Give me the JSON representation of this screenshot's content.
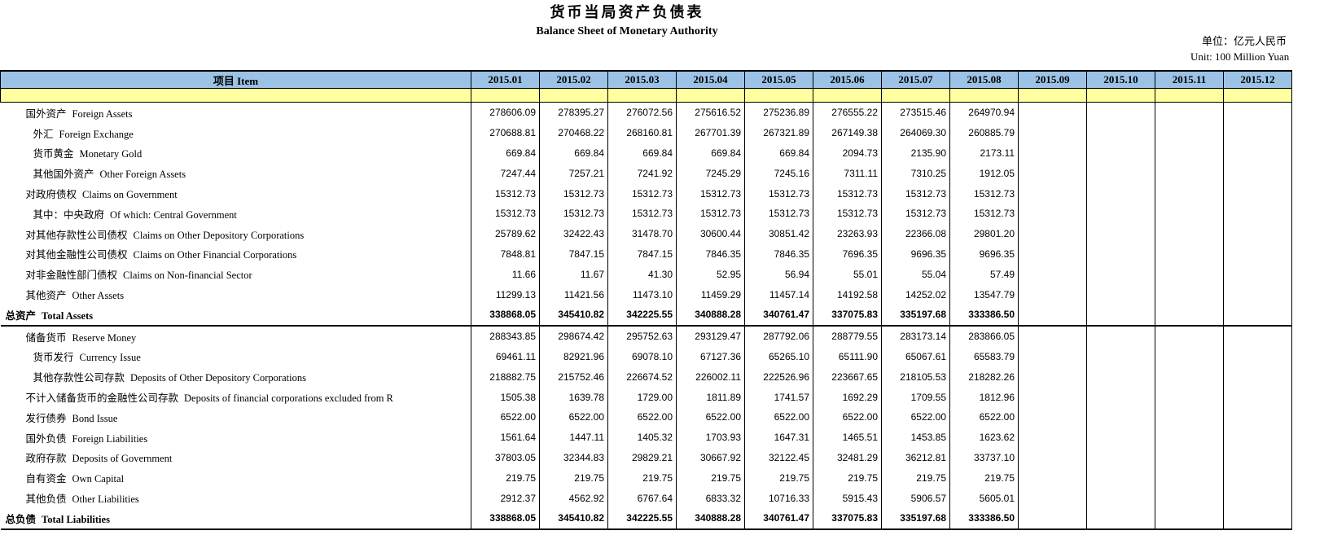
{
  "page": {
    "title_cn": "货币当局资产负债表",
    "title_en": "Balance Sheet of  Monetary Authority",
    "unit_cn": "单位：亿元人民币",
    "unit_en": "Unit: 100 Million Yuan"
  },
  "colors": {
    "header_blue": "#9CC2E5",
    "band_yellow": "#FFFF9F",
    "border": "#000000"
  },
  "table": {
    "header": {
      "item_label": "项目  Item"
    },
    "columns": [
      "2015.01",
      "2015.02",
      "2015.03",
      "2015.04",
      "2015.05",
      "2015.06",
      "2015.07",
      "2015.08",
      "2015.09",
      "2015.10",
      "2015.11",
      "2015.12"
    ],
    "rows": [
      {
        "label_cn": "国外资产",
        "label_en": "Foreign Assets",
        "indent": 1,
        "bold": false,
        "section_end": false,
        "values": [
          "278606.09",
          "278395.27",
          "276072.56",
          "275616.52",
          "275236.89",
          "276555.22",
          "273515.46",
          "264970.94"
        ]
      },
      {
        "label_cn": "外汇",
        "label_en": "Foreign Exchange",
        "indent": 2,
        "bold": false,
        "section_end": false,
        "values": [
          "270688.81",
          "270468.22",
          "268160.81",
          "267701.39",
          "267321.89",
          "267149.38",
          "264069.30",
          "260885.79"
        ]
      },
      {
        "label_cn": "货币黄金",
        "label_en": "Monetary Gold",
        "indent": 2,
        "bold": false,
        "section_end": false,
        "values": [
          "669.84",
          "669.84",
          "669.84",
          "669.84",
          "669.84",
          "2094.73",
          "2135.90",
          "2173.11"
        ]
      },
      {
        "label_cn": "其他国外资产",
        "label_en": "Other Foreign Assets",
        "indent": 2,
        "bold": false,
        "section_end": false,
        "values": [
          "7247.44",
          "7257.21",
          "7241.92",
          "7245.29",
          "7245.16",
          "7311.11",
          "7310.25",
          "1912.05"
        ]
      },
      {
        "label_cn": "对政府债权",
        "label_en": "Claims on Government",
        "indent": 1,
        "bold": false,
        "section_end": false,
        "values": [
          "15312.73",
          "15312.73",
          "15312.73",
          "15312.73",
          "15312.73",
          "15312.73",
          "15312.73",
          "15312.73"
        ]
      },
      {
        "label_cn": "其中：中央政府",
        "label_en": "Of which: Central Government",
        "indent": 2,
        "bold": false,
        "section_end": false,
        "values": [
          "15312.73",
          "15312.73",
          "15312.73",
          "15312.73",
          "15312.73",
          "15312.73",
          "15312.73",
          "15312.73"
        ]
      },
      {
        "label_cn": "对其他存款性公司债权",
        "label_en": "Claims on Other Depository Corporations",
        "indent": 1,
        "bold": false,
        "section_end": false,
        "values": [
          "25789.62",
          "32422.43",
          "31478.70",
          "30600.44",
          "30851.42",
          "23263.93",
          "22366.08",
          "29801.20"
        ]
      },
      {
        "label_cn": "对其他金融性公司债权",
        "label_en": "Claims on Other Financial Corporations",
        "indent": 1,
        "bold": false,
        "section_end": false,
        "values": [
          "7848.81",
          "7847.15",
          "7847.15",
          "7846.35",
          "7846.35",
          "7696.35",
          "9696.35",
          "9696.35"
        ]
      },
      {
        "label_cn": "对非金融性部门债权",
        "label_en": "Claims on Non-financial Sector",
        "indent": 1,
        "bold": false,
        "section_end": false,
        "values": [
          "11.66",
          "11.67",
          "41.30",
          "52.95",
          "56.94",
          "55.01",
          "55.04",
          "57.49"
        ]
      },
      {
        "label_cn": "其他资产",
        "label_en": "Other Assets",
        "indent": 1,
        "bold": false,
        "section_end": false,
        "values": [
          "11299.13",
          "11421.56",
          "11473.10",
          "11459.29",
          "11457.14",
          "14192.58",
          "14252.02",
          "13547.79"
        ]
      },
      {
        "label_cn": "总资产",
        "label_en": "Total Assets",
        "indent": 0,
        "bold": true,
        "section_end": true,
        "values": [
          "338868.05",
          "345410.82",
          "342225.55",
          "340888.28",
          "340761.47",
          "337075.83",
          "335197.68",
          "333386.50"
        ]
      },
      {
        "label_cn": "储备货币",
        "label_en": "Reserve Money",
        "indent": 1,
        "bold": false,
        "section_end": false,
        "values": [
          "288343.85",
          "298674.42",
          "295752.63",
          "293129.47",
          "287792.06",
          "288779.55",
          "283173.14",
          "283866.05"
        ]
      },
      {
        "label_cn": "货币发行",
        "label_en": "Currency Issue",
        "indent": 2,
        "bold": false,
        "section_end": false,
        "values": [
          "69461.11",
          "82921.96",
          "69078.10",
          "67127.36",
          "65265.10",
          "65111.90",
          "65067.61",
          "65583.79"
        ]
      },
      {
        "label_cn": "其他存款性公司存款",
        "label_en": "Deposits of  Other Depository Corporations",
        "indent": 2,
        "bold": false,
        "section_end": false,
        "values": [
          "218882.75",
          "215752.46",
          "226674.52",
          "226002.11",
          "222526.96",
          "223667.65",
          "218105.53",
          "218282.26"
        ]
      },
      {
        "label_cn": "不计入储备货币的金融性公司存款",
        "label_en": "Deposits of financial corporations excluded from R",
        "indent": 1,
        "bold": false,
        "section_end": false,
        "values": [
          "1505.38",
          "1639.78",
          "1729.00",
          "1811.89",
          "1741.57",
          "1692.29",
          "1709.55",
          "1812.96"
        ]
      },
      {
        "label_cn": "发行债券",
        "label_en": "Bond Issue",
        "indent": 1,
        "bold": false,
        "section_end": false,
        "values": [
          "6522.00",
          "6522.00",
          "6522.00",
          "6522.00",
          "6522.00",
          "6522.00",
          "6522.00",
          "6522.00"
        ]
      },
      {
        "label_cn": "国外负债",
        "label_en": "Foreign Liabilities",
        "indent": 1,
        "bold": false,
        "section_end": false,
        "values": [
          "1561.64",
          "1447.11",
          "1405.32",
          "1703.93",
          "1647.31",
          "1465.51",
          "1453.85",
          "1623.62"
        ]
      },
      {
        "label_cn": "政府存款",
        "label_en": "Deposits of Government",
        "indent": 1,
        "bold": false,
        "section_end": false,
        "values": [
          "37803.05",
          "32344.83",
          "29829.21",
          "30667.92",
          "32122.45",
          "32481.29",
          "36212.81",
          "33737.10"
        ]
      },
      {
        "label_cn": "自有资金",
        "label_en": "Own Capital",
        "indent": 1,
        "bold": false,
        "section_end": false,
        "values": [
          "219.75",
          "219.75",
          "219.75",
          "219.75",
          "219.75",
          "219.75",
          "219.75",
          "219.75"
        ]
      },
      {
        "label_cn": "其他负债",
        "label_en": "Other Liabilities",
        "indent": 1,
        "bold": false,
        "section_end": false,
        "values": [
          "2912.37",
          "4562.92",
          "6767.64",
          "6833.32",
          "10716.33",
          "5915.43",
          "5906.57",
          "5605.01"
        ]
      },
      {
        "label_cn": "总负债",
        "label_en": "Total  Liabilities",
        "indent": 0,
        "bold": true,
        "section_end": false,
        "values": [
          "338868.05",
          "345410.82",
          "342225.55",
          "340888.28",
          "340761.47",
          "337075.83",
          "335197.68",
          "333386.50"
        ]
      }
    ]
  }
}
